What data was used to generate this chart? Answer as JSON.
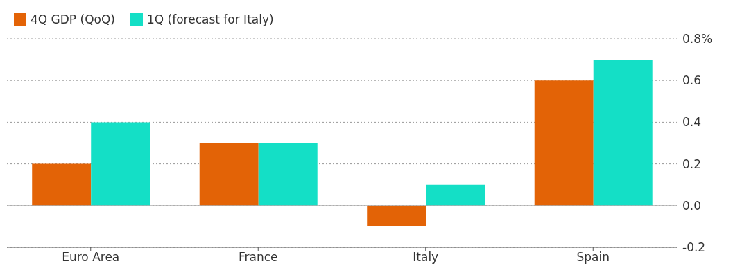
{
  "chart_data": {
    "type": "bar",
    "categories": [
      "Euro Area",
      "France",
      "Italy",
      "Spain"
    ],
    "series": [
      {
        "name": "4Q GDP (QoQ)",
        "color": "#e36306",
        "values": [
          0.2,
          0.3,
          -0.1,
          0.6
        ]
      },
      {
        "name": "1Q (forecast for Italy)",
        "color": "#14dfc6",
        "values": [
          0.4,
          0.3,
          0.1,
          0.7
        ]
      }
    ],
    "ylim": [
      -0.2,
      0.8
    ],
    "yticks": [
      {
        "value": -0.2,
        "label": "-0.2"
      },
      {
        "value": 0,
        "label": "0.0"
      },
      {
        "value": 0.2,
        "label": "0.2"
      },
      {
        "value": 0.4,
        "label": "0.4"
      },
      {
        "value": 0.6,
        "label": "0.6"
      },
      {
        "value": 0.8,
        "label": "0.8%"
      }
    ],
    "grid": "y",
    "legend": "top left",
    "ref_lines": [
      {
        "axis": "y",
        "value": 0,
        "color": "#aaaaaa"
      }
    ]
  }
}
